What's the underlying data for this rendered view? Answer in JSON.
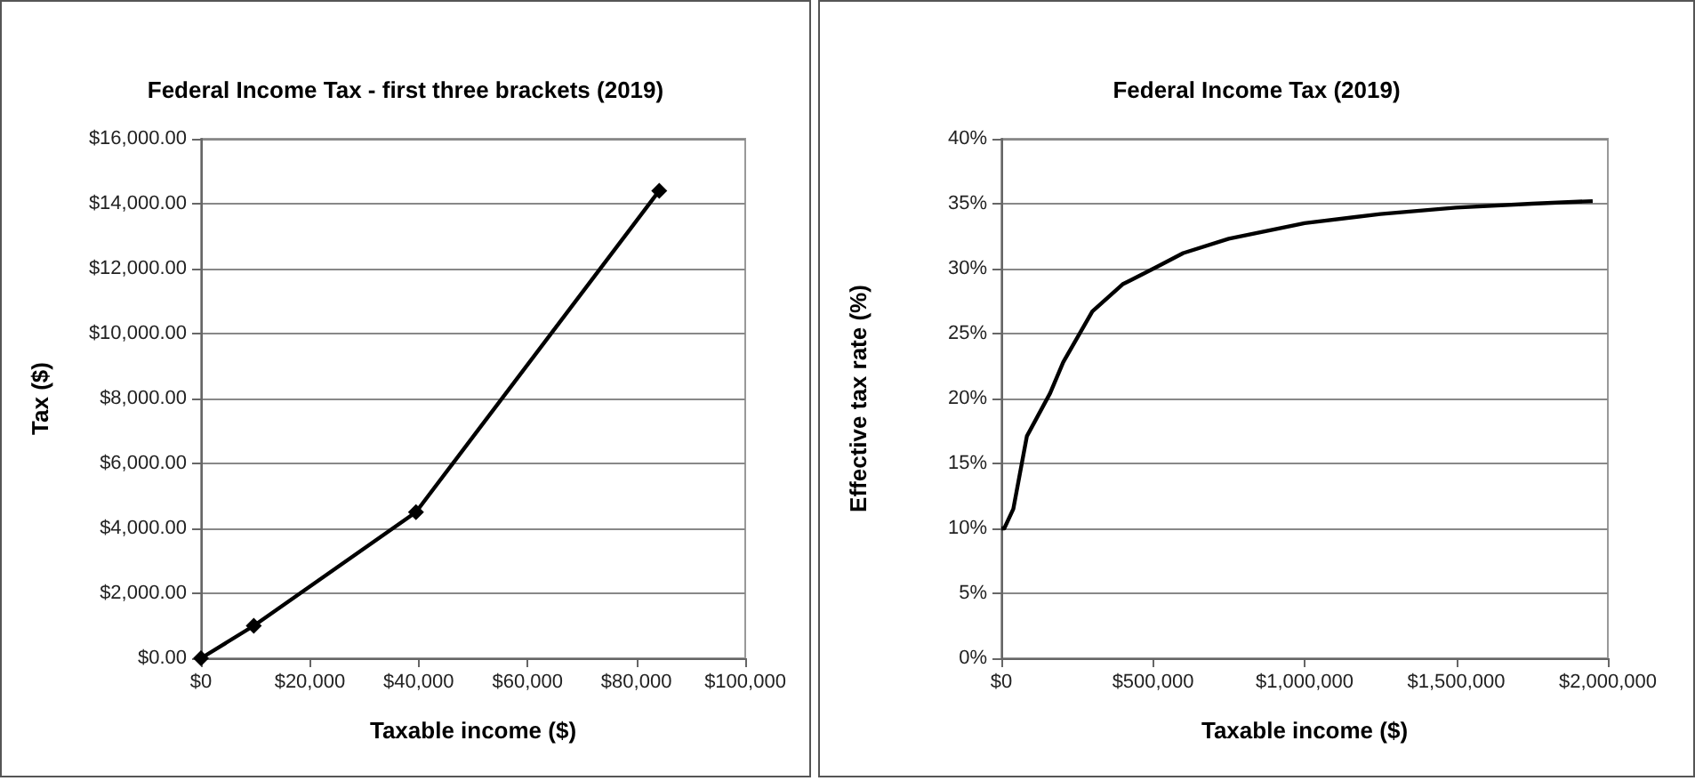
{
  "chart_data": [
    {
      "type": "line",
      "title": "Federal Income Tax - first three brackets (2019)",
      "xlabel": "Taxable income ($)",
      "ylabel": "Tax ($)",
      "x": [
        0,
        9700,
        39500,
        84200
      ],
      "series": [
        {
          "color": "#000000",
          "values": [
            0,
            1000,
            4500,
            14400
          ]
        }
      ],
      "xlim": [
        0,
        100000
      ],
      "xticks": [
        {
          "value": 0,
          "label": "$0"
        },
        {
          "value": 20000,
          "label": "$20,000"
        },
        {
          "value": 40000,
          "label": "$40,000"
        },
        {
          "value": 60000,
          "label": "$60,000"
        },
        {
          "value": 80000,
          "label": "$80,000"
        },
        {
          "value": 100000,
          "label": "$100,000"
        }
      ],
      "ylim": [
        0,
        16000
      ],
      "yticks": [
        {
          "value": 0,
          "label": "$0.00"
        },
        {
          "value": 2000,
          "label": "$2,000.00"
        },
        {
          "value": 4000,
          "label": "$4,000.00"
        },
        {
          "value": 6000,
          "label": "$6,000.00"
        },
        {
          "value": 8000,
          "label": "$8,000.00"
        },
        {
          "value": 10000,
          "label": "$10,000.00"
        },
        {
          "value": 12000,
          "label": "$12,000.00"
        },
        {
          "value": 14000,
          "label": "$14,000.00"
        },
        {
          "value": 16000,
          "label": "$16,000.00"
        }
      ],
      "grid": "y",
      "marker": "diamond",
      "line_style": "solid"
    },
    {
      "type": "line",
      "title": "Federal Income Tax (2019)",
      "xlabel": "Taxable income ($)",
      "ylabel": "Effective tax rate (%)",
      "x": [
        0,
        9700,
        39500,
        84200,
        160700,
        204100,
        300000,
        400000,
        510000,
        600000,
        750000,
        1000000,
        1250000,
        1500000,
        1750000,
        1950000
      ],
      "series": [
        {
          "color": "#000000",
          "values": [
            10,
            10,
            11.5,
            17.1,
            20.4,
            22.8,
            26.7,
            28.8,
            30.1,
            31.2,
            32.3,
            33.5,
            34.2,
            34.7,
            35.0,
            35.2
          ]
        }
      ],
      "xlim": [
        0,
        2000000
      ],
      "xticks": [
        {
          "value": 0,
          "label": "$0"
        },
        {
          "value": 500000,
          "label": "$500,000"
        },
        {
          "value": 1000000,
          "label": "$1,000,000"
        },
        {
          "value": 1500000,
          "label": "$1,500,000"
        },
        {
          "value": 2000000,
          "label": "$2,000,000"
        }
      ],
      "ylim": [
        0,
        40
      ],
      "yticks": [
        {
          "value": 0,
          "label": "0%"
        },
        {
          "value": 5,
          "label": "5%"
        },
        {
          "value": 10,
          "label": "10%"
        },
        {
          "value": 15,
          "label": "15%"
        },
        {
          "value": 20,
          "label": "20%"
        },
        {
          "value": 25,
          "label": "25%"
        },
        {
          "value": 30,
          "label": "30%"
        },
        {
          "value": 35,
          "label": "35%"
        },
        {
          "value": 40,
          "label": "40%"
        }
      ],
      "grid": "y",
      "marker": "none",
      "line_style": "solid"
    }
  ]
}
